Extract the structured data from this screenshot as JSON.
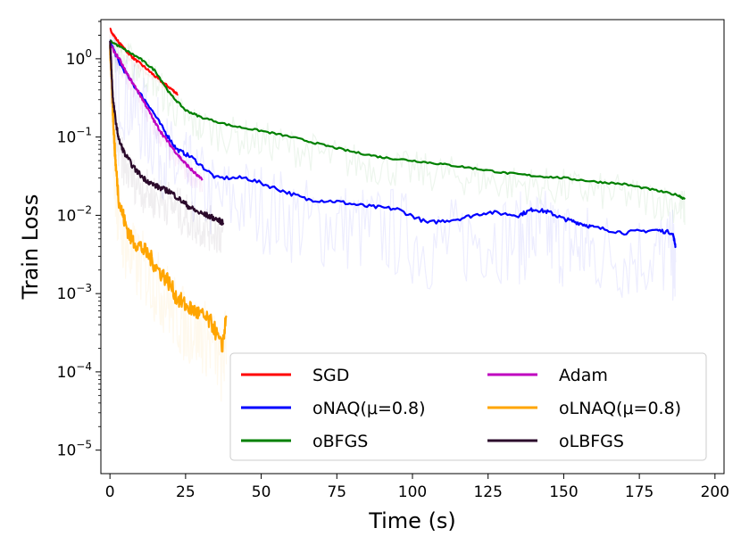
{
  "chart_data": {
    "type": "line",
    "title": "",
    "xlabel": "Time (s)",
    "ylabel": "Train Loss",
    "xlim": [
      -3,
      203
    ],
    "ylim_log10": [
      -5.3,
      0.5
    ],
    "y_scale": "log",
    "xticks": [
      0,
      25,
      50,
      75,
      100,
      125,
      150,
      175,
      200
    ],
    "xtick_labels": [
      "0",
      "25",
      "50",
      "75",
      "100",
      "125",
      "150",
      "175",
      "200"
    ],
    "yticks_log10": [
      0,
      -1,
      -2,
      -3,
      -4,
      -5
    ],
    "ytick_labels": [
      {
        "base": "10",
        "exp": "0"
      },
      {
        "base": "10",
        "exp": "−1"
      },
      {
        "base": "10",
        "exp": "−2"
      },
      {
        "base": "10",
        "exp": "−3"
      },
      {
        "base": "10",
        "exp": "−4"
      },
      {
        "base": "10",
        "exp": "−5"
      }
    ],
    "grid": false,
    "legend_position": "lower-right",
    "legend_columns": 2,
    "series": [
      {
        "name": "SGD",
        "color": "#ff0000",
        "x": [
          0,
          2,
          5,
          8,
          12,
          16,
          20,
          22.5
        ],
        "y": [
          2.4,
          1.8,
          1.3,
          1.0,
          0.75,
          0.55,
          0.42,
          0.35
        ]
      },
      {
        "name": "oNAQ(μ=0.8)",
        "color": "#0000ff",
        "x": [
          0,
          3,
          8,
          13,
          18,
          22,
          27,
          35,
          45,
          55,
          65,
          75,
          85,
          95,
          105,
          115,
          125,
          135,
          140,
          145,
          150,
          155,
          160,
          170,
          180,
          186,
          187
        ],
        "y": [
          1.7,
          0.9,
          0.45,
          0.25,
          0.12,
          0.07,
          0.055,
          0.03,
          0.03,
          0.022,
          0.016,
          0.015,
          0.013,
          0.012,
          0.008,
          0.009,
          0.011,
          0.01,
          0.012,
          0.011,
          0.009,
          0.008,
          0.007,
          0.006,
          0.0065,
          0.006,
          0.004
        ]
      },
      {
        "name": "oBFGS",
        "color": "#008000",
        "x": [
          0,
          5,
          10,
          15,
          20,
          25,
          30,
          40,
          50,
          60,
          70,
          80,
          90,
          100,
          110,
          120,
          130,
          140,
          150,
          160,
          170,
          180,
          188,
          190
        ],
        "y": [
          1.7,
          1.3,
          1.0,
          0.7,
          0.35,
          0.22,
          0.18,
          0.14,
          0.12,
          0.1,
          0.08,
          0.065,
          0.055,
          0.05,
          0.045,
          0.04,
          0.035,
          0.032,
          0.03,
          0.027,
          0.025,
          0.021,
          0.018,
          0.016
        ]
      },
      {
        "name": "Adam",
        "color": "#bf00bf",
        "x": [
          0,
          3,
          6,
          9,
          12,
          15,
          18,
          21,
          24,
          27,
          30.5
        ],
        "y": [
          1.5,
          1.0,
          0.6,
          0.4,
          0.25,
          0.15,
          0.1,
          0.07,
          0.05,
          0.038,
          0.028
        ]
      },
      {
        "name": "oLNAQ(μ=0.8)",
        "color": "#ffa500",
        "x": [
          0,
          0.5,
          1,
          1.5,
          2,
          3,
          5,
          7,
          10,
          13,
          16,
          19,
          22,
          25,
          28,
          31,
          34,
          37,
          38.5
        ],
        "y": [
          1.5,
          0.6,
          0.2,
          0.08,
          0.04,
          0.015,
          0.008,
          0.005,
          0.004,
          0.003,
          0.002,
          0.0015,
          0.0009,
          0.0007,
          0.0006,
          0.0005,
          0.0004,
          0.0002,
          0.0005
        ]
      },
      {
        "name": "oLBFGS",
        "color": "#2b0a2b",
        "x": [
          0,
          0.5,
          1,
          2,
          3,
          5,
          8,
          11,
          14,
          17,
          20,
          23,
          26,
          29,
          32,
          35,
          37.5
        ],
        "y": [
          1.7,
          0.7,
          0.3,
          0.15,
          0.09,
          0.06,
          0.04,
          0.03,
          0.025,
          0.022,
          0.02,
          0.016,
          0.013,
          0.011,
          0.01,
          0.009,
          0.008
        ]
      }
    ],
    "legend_order": [
      "SGD",
      "Adam",
      "oNAQ(μ=0.8)",
      "oLNAQ(μ=0.8)",
      "oBFGS",
      "oLBFGS"
    ]
  }
}
